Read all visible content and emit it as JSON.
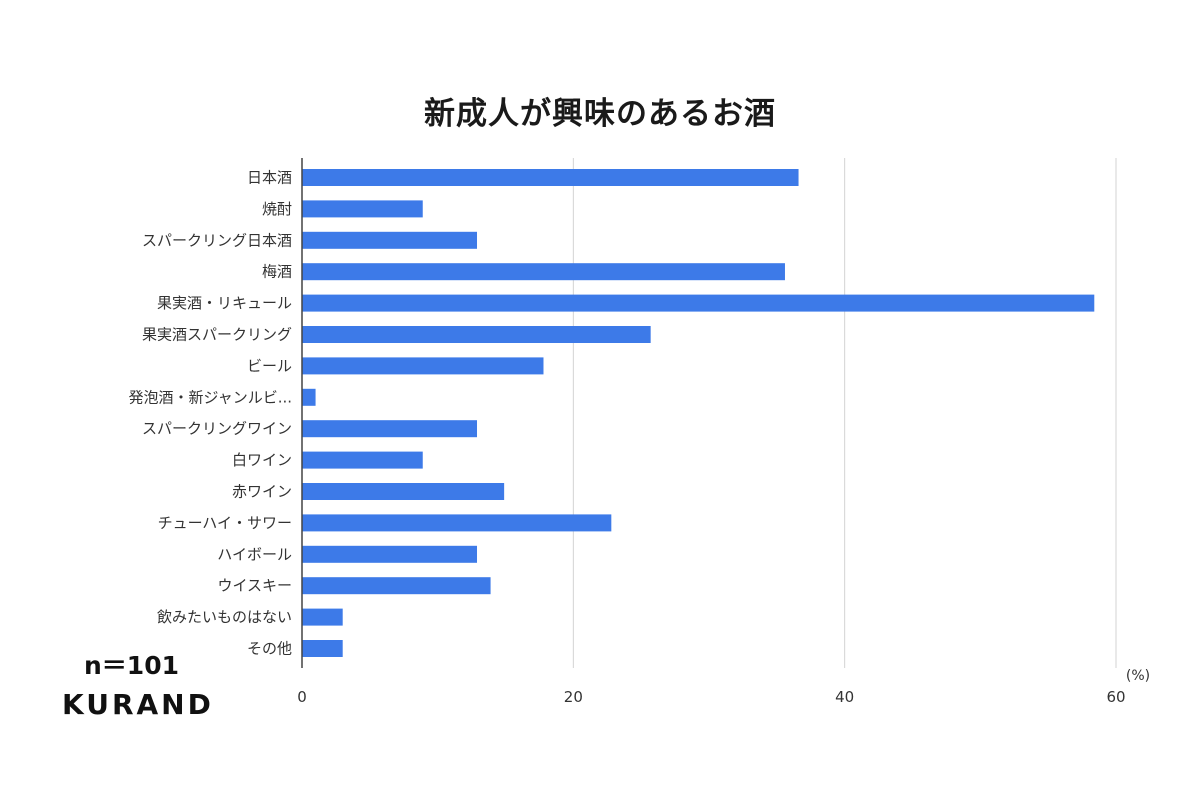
{
  "chart_data": {
    "type": "bar",
    "orientation": "horizontal",
    "title": "新成人が興味のあるお酒",
    "categories": [
      "日本酒",
      "焼酎",
      "スパークリング日本酒",
      "梅酒",
      "果実酒・リキュール",
      "果実酒スパークリング",
      "ビール",
      "発泡酒・新ジャンルビ...",
      "スパークリングワイン",
      "白ワイン",
      "赤ワイン",
      "チューハイ・サワー",
      "ハイボール",
      "ウイスキー",
      "飲みたいものはない",
      "その他"
    ],
    "values": [
      36.6,
      8.9,
      12.9,
      35.6,
      58.4,
      25.7,
      17.8,
      1.0,
      12.9,
      8.9,
      14.9,
      22.8,
      12.9,
      13.9,
      3.0,
      3.0
    ],
    "xlim": [
      0,
      60
    ],
    "xticks": [
      0,
      20,
      40,
      60
    ],
    "xunit": "(%)",
    "grid": true,
    "bar_color": "#3d7ae8",
    "grid_color": "#d3d3d3",
    "axis_color": "#444444"
  },
  "annotations": {
    "sample_size": "n＝101",
    "brand": "KURAND"
  }
}
